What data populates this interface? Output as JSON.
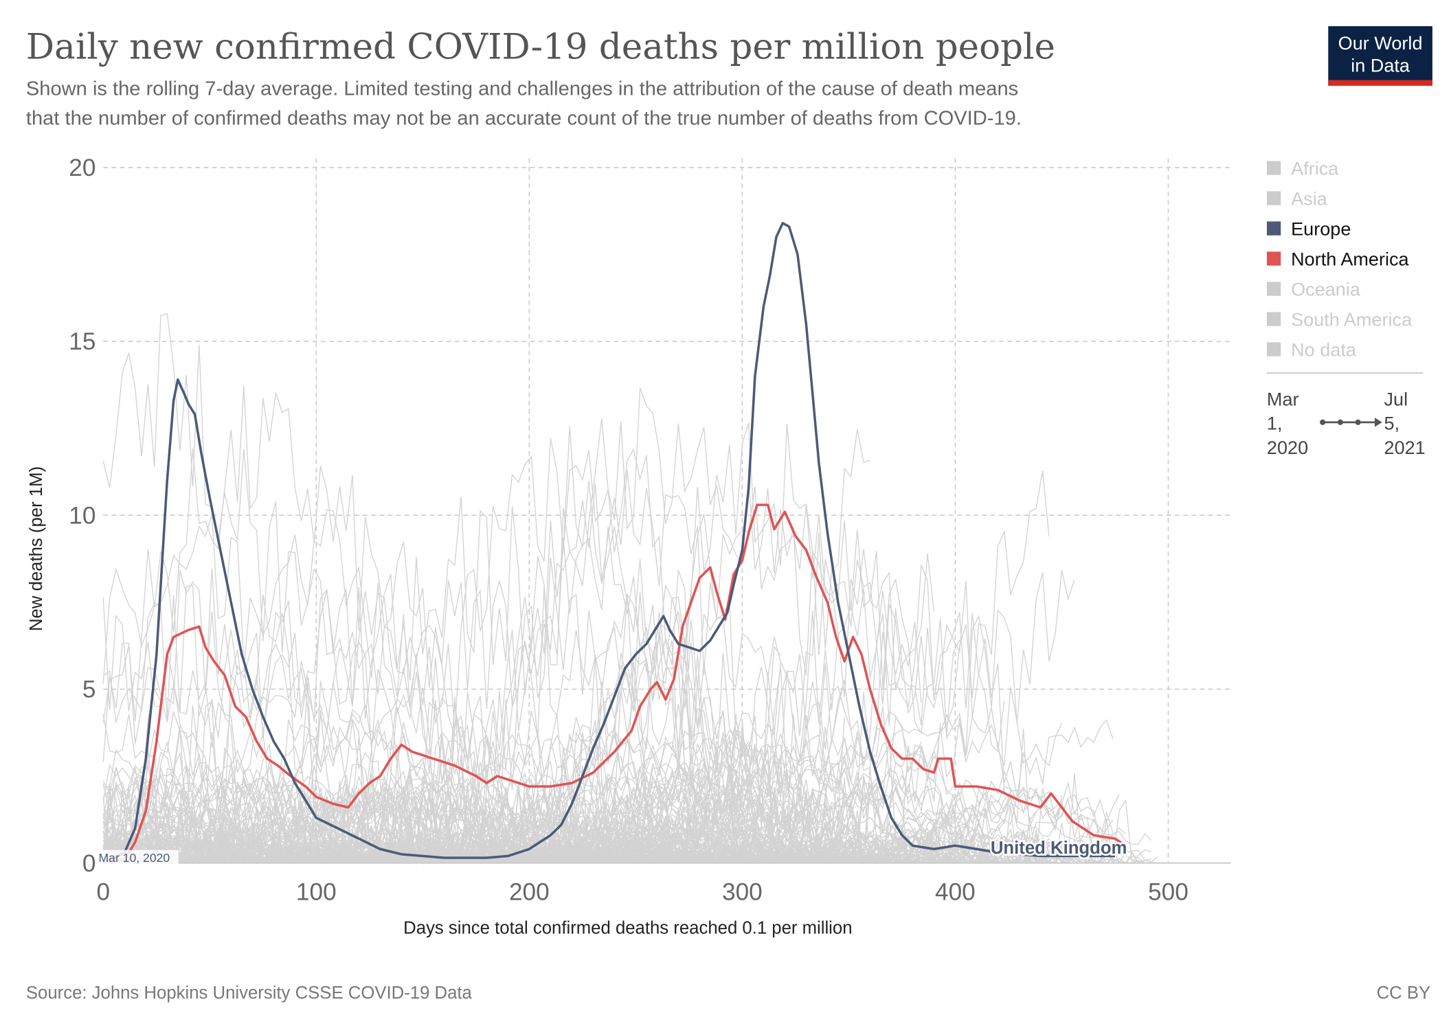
{
  "chart_data": {
    "type": "line",
    "title": "Daily new confirmed COVID-19 deaths per million people",
    "subtitle": [
      "Shown is the rolling 7-day average. Limited testing and challenges in the attribution of the cause of death means",
      "that the number of confirmed deaths may not be an accurate count of the true number of deaths from COVID-19."
    ],
    "xlabel": "Days since total confirmed deaths reached 0.1 per million",
    "ylabel": "New deaths (per 1M)",
    "xlim": [
      0,
      530
    ],
    "ylim": [
      0,
      20
    ],
    "xticks": [
      "0",
      "100",
      "200",
      "300",
      "400",
      "500"
    ],
    "yticks": [
      "0",
      "5",
      "10",
      "15",
      "20"
    ],
    "grid": true,
    "legend_placement": "right",
    "legend": [
      {
        "label": "Africa",
        "color": "#cccccc",
        "active": false
      },
      {
        "label": "Asia",
        "color": "#cccccc",
        "active": false
      },
      {
        "label": "Europe",
        "color": "#4c5a77",
        "active": true
      },
      {
        "label": "North America",
        "color": "#e05353",
        "active": true
      },
      {
        "label": "Oceania",
        "color": "#cccccc",
        "active": false
      },
      {
        "label": "South America",
        "color": "#cccccc",
        "active": false
      },
      {
        "label": "No data",
        "color": "#cccccc",
        "active": false
      }
    ],
    "annotations": {
      "start_label": "Mar 10, 2020",
      "highlight_label": "United Kingdom"
    },
    "series": [
      {
        "name": "Europe (United Kingdom)",
        "color": "#4c5a77",
        "x": [
          0,
          10,
          15,
          20,
          25,
          28,
          30,
          33,
          35,
          38,
          40,
          43,
          46,
          50,
          55,
          60,
          65,
          70,
          75,
          80,
          85,
          90,
          95,
          100,
          110,
          120,
          130,
          140,
          150,
          160,
          170,
          180,
          190,
          200,
          210,
          215,
          220,
          225,
          230,
          235,
          240,
          245,
          250,
          255,
          260,
          263,
          266,
          270,
          275,
          280,
          285,
          290,
          293,
          296,
          300,
          303,
          306,
          310,
          313,
          316,
          319,
          322,
          326,
          330,
          333,
          336,
          340,
          345,
          350,
          355,
          360,
          365,
          370,
          375,
          380,
          390,
          400,
          420,
          440,
          460,
          475
        ],
        "y": [
          0,
          0.3,
          1,
          3,
          6,
          9,
          11,
          13.3,
          13.9,
          13.5,
          13.2,
          12.9,
          11.8,
          10.5,
          9,
          7.5,
          6,
          5,
          4.2,
          3.5,
          3.0,
          2.3,
          1.8,
          1.3,
          1.0,
          0.7,
          0.4,
          0.25,
          0.2,
          0.15,
          0.15,
          0.15,
          0.2,
          0.4,
          0.8,
          1.1,
          1.7,
          2.5,
          3.3,
          4.0,
          4.8,
          5.6,
          6.0,
          6.3,
          6.8,
          7.1,
          6.7,
          6.3,
          6.2,
          6.1,
          6.4,
          6.9,
          7.2,
          8.0,
          9.0,
          10.8,
          14,
          16,
          16.9,
          18.0,
          18.4,
          18.3,
          17.5,
          15.5,
          13.5,
          11.5,
          9.5,
          7.5,
          6.0,
          4.5,
          3.2,
          2.2,
          1.3,
          0.8,
          0.5,
          0.4,
          0.5,
          0.3,
          0.2,
          0.2,
          0.2
        ]
      },
      {
        "name": "North America",
        "color": "#e05353",
        "x": [
          0,
          10,
          15,
          20,
          25,
          28,
          30,
          33,
          40,
          45,
          48,
          52,
          57,
          62,
          67,
          72,
          77,
          82,
          88,
          95,
          100,
          108,
          115,
          120,
          125,
          130,
          135,
          140,
          145,
          155,
          165,
          175,
          180,
          185,
          190,
          200,
          210,
          220,
          230,
          240,
          248,
          252,
          257,
          260,
          264,
          268,
          272,
          276,
          280,
          285,
          288,
          292,
          296,
          300,
          303,
          307,
          312,
          315,
          320,
          325,
          330,
          335,
          340,
          344,
          348,
          352,
          356,
          360,
          365,
          370,
          375,
          380,
          385,
          390,
          392,
          398,
          400,
          410,
          420,
          430,
          440,
          445,
          450,
          455,
          465,
          475,
          480
        ],
        "y": [
          0,
          0.1,
          0.6,
          1.5,
          3.5,
          5,
          6,
          6.5,
          6.7,
          6.8,
          6.2,
          5.8,
          5.4,
          4.5,
          4.2,
          3.5,
          3.0,
          2.8,
          2.5,
          2.2,
          1.9,
          1.7,
          1.6,
          2.0,
          2.3,
          2.5,
          3.0,
          3.4,
          3.2,
          3.0,
          2.8,
          2.5,
          2.3,
          2.5,
          2.4,
          2.2,
          2.2,
          2.3,
          2.6,
          3.2,
          3.8,
          4.5,
          5.0,
          5.2,
          4.7,
          5.3,
          6.8,
          7.5,
          8.2,
          8.5,
          7.8,
          7.0,
          8.3,
          8.7,
          9.5,
          10.3,
          10.3,
          9.6,
          10.1,
          9.4,
          9.0,
          8.2,
          7.5,
          6.5,
          5.8,
          6.5,
          6.0,
          5.0,
          4.0,
          3.3,
          3.0,
          3.0,
          2.7,
          2.6,
          3.0,
          3.0,
          2.2,
          2.2,
          2.1,
          1.8,
          1.6,
          2.0,
          1.6,
          1.2,
          0.8,
          0.7,
          0.5
        ]
      }
    ],
    "timeline": {
      "start": "Mar 1, 2020",
      "end": "Jul 5, 2021"
    }
  },
  "logo": {
    "line1": "Our World",
    "line2": "in Data"
  },
  "footer": {
    "source": "Source: Johns Hopkins University CSSE COVID-19 Data",
    "license": "CC BY"
  }
}
